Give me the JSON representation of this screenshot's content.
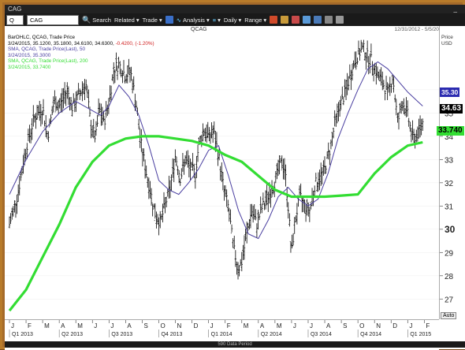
{
  "window": {
    "title": "CAG",
    "min_label": "_"
  },
  "toolbar": {
    "symbol_box": "Q",
    "symbol_input": "CAG",
    "items": [
      "Search",
      "Related",
      "Trade",
      "Analysis",
      "Daily",
      "Range"
    ]
  },
  "chart_header": {
    "symbol": "QCAG",
    "date_range": "12/31/2012 - 5/5/2015 (NYC)"
  },
  "legend": [
    {
      "line": "BarOHLC, QCAG, Trade Price",
      "color": "#000000"
    },
    {
      "line": "3/24/2015, 35.1200, 35.1800, 34.6100, 34.6300, -0.4200, (-1.20%)",
      "color": "#000000",
      "change": "-0.4200, (-1.20%)"
    },
    {
      "line": "SMA, QCAG, Trade Price(Last), 50",
      "color": "#4a3fa0"
    },
    {
      "line": "3/24/2015, 35.3000",
      "color": "#4a3fa0"
    },
    {
      "line": "SMA, QCAG, Trade Price(Last), 200",
      "color": "#33dd33"
    },
    {
      "line": "3/24/2015, 33.7400",
      "color": "#33dd33"
    }
  ],
  "price_axis": {
    "header1": "Price",
    "header2": "USD",
    "ticks": [
      "36",
      "35",
      "34",
      "33",
      "32",
      "31",
      "30",
      "29",
      "28",
      "27"
    ]
  },
  "tags": {
    "last": "34.63",
    "sma50": "35.30",
    "sma200": "33.740"
  },
  "months": [
    "J",
    "F",
    "M",
    "A",
    "M",
    "J",
    "J",
    "A",
    "S",
    "O",
    "N",
    "D",
    "J",
    "F",
    "M",
    "A",
    "M",
    "J",
    "J",
    "A",
    "S",
    "O",
    "N",
    "D",
    "J",
    "F",
    "M",
    "A"
  ],
  "quarters": [
    "Q1 2013",
    "Q2 2013",
    "Q3 2013",
    "Q4 2013",
    "Q1 2014",
    "Q2 2014",
    "Q3 2014",
    "Q4 2014",
    "Q1 2015",
    "Q2 15"
  ],
  "footer": "590 Data Period",
  "auto_label": "Auto",
  "chart_data": {
    "type": "line",
    "title": "QCAG",
    "ylim": [
      26.4,
      38.2
    ],
    "x_range": [
      "2013-01",
      "2015-04"
    ],
    "series": [
      {
        "name": "Trade Price",
        "color": "#000000",
        "points": [
          [
            0,
            30.2
          ],
          [
            0.5,
            31.5
          ],
          [
            1,
            33.5
          ],
          [
            1.5,
            34.8
          ],
          [
            2,
            35.2
          ],
          [
            2.3,
            34.0
          ],
          [
            2.7,
            35.5
          ],
          [
            3,
            35.3
          ],
          [
            3.5,
            36.0
          ],
          [
            3.8,
            35.2
          ],
          [
            4.2,
            35.8
          ],
          [
            4.6,
            36.3
          ],
          [
            4.9,
            34.5
          ],
          [
            5.2,
            33.9
          ],
          [
            5.4,
            35.2
          ],
          [
            5.7,
            34.6
          ],
          [
            6,
            35.5
          ],
          [
            6.3,
            36.9
          ],
          [
            6.6,
            37.1
          ],
          [
            7,
            36.6
          ],
          [
            7.3,
            36.8
          ],
          [
            7.6,
            35.6
          ],
          [
            7.9,
            33.8
          ],
          [
            8.2,
            32.6
          ],
          [
            8.5,
            31.6
          ],
          [
            8.8,
            30.6
          ],
          [
            9.1,
            30.3
          ],
          [
            9.4,
            31.1
          ],
          [
            9.7,
            31.8
          ],
          [
            10.0,
            33.2
          ],
          [
            10.3,
            32.2
          ],
          [
            10.6,
            33.0
          ],
          [
            10.9,
            32.6
          ],
          [
            11.2,
            32.4
          ],
          [
            11.4,
            33.6
          ],
          [
            11.7,
            34.3
          ],
          [
            12.0,
            34.0
          ],
          [
            12.3,
            34.2
          ],
          [
            12.6,
            33.2
          ],
          [
            12.9,
            31.8
          ],
          [
            13.2,
            30.9
          ],
          [
            13.5,
            29.2
          ],
          [
            13.8,
            28.3
          ],
          [
            14.0,
            28.6
          ],
          [
            14.3,
            29.8
          ],
          [
            14.6,
            30.8
          ],
          [
            14.9,
            30.2
          ],
          [
            15.2,
            30.9
          ],
          [
            15.5,
            31.3
          ],
          [
            15.8,
            31.7
          ],
          [
            16.1,
            32.3
          ],
          [
            16.4,
            32.9
          ],
          [
            16.6,
            32.6
          ],
          [
            16.8,
            31.0
          ],
          [
            17.0,
            28.9
          ],
          [
            17.2,
            30.3
          ],
          [
            17.5,
            31.4
          ],
          [
            17.8,
            31.0
          ],
          [
            18.1,
            30.8
          ],
          [
            18.4,
            31.9
          ],
          [
            18.7,
            32.2
          ],
          [
            19.0,
            32.6
          ],
          [
            19.3,
            33.4
          ],
          [
            19.6,
            34.5
          ],
          [
            19.9,
            35.3
          ],
          [
            20.2,
            35.8
          ],
          [
            20.5,
            36.5
          ],
          [
            20.8,
            37.2
          ],
          [
            21.0,
            37.5
          ],
          [
            21.3,
            37.8
          ],
          [
            21.6,
            37.4
          ],
          [
            21.9,
            37.2
          ],
          [
            22.2,
            36.6
          ],
          [
            22.5,
            36.3
          ],
          [
            22.8,
            35.8
          ],
          [
            23.1,
            36.6
          ],
          [
            23.4,
            34.6
          ],
          [
            23.7,
            35.5
          ],
          [
            24.0,
            34.9
          ],
          [
            24.3,
            33.9
          ],
          [
            24.6,
            34.1
          ],
          [
            24.9,
            34.6
          ]
        ]
      },
      {
        "name": "SMA 50",
        "color": "#4a3fa0",
        "points": [
          [
            0,
            31.5
          ],
          [
            1,
            33.0
          ],
          [
            2,
            34.2
          ],
          [
            3,
            35.0
          ],
          [
            4,
            35.5
          ],
          [
            5,
            35.1
          ],
          [
            5.5,
            34.9
          ],
          [
            6,
            35.3
          ],
          [
            6.6,
            36.2
          ],
          [
            7.2,
            35.7
          ],
          [
            7.8,
            34.9
          ],
          [
            8.4,
            33.6
          ],
          [
            9.0,
            32.1
          ],
          [
            9.6,
            31.7
          ],
          [
            10.2,
            31.5
          ],
          [
            10.8,
            32.0
          ],
          [
            11.4,
            32.6
          ],
          [
            12.0,
            33.4
          ],
          [
            12.6,
            33.6
          ],
          [
            13.2,
            32.3
          ],
          [
            13.8,
            30.8
          ],
          [
            14.4,
            29.8
          ],
          [
            15.0,
            29.6
          ],
          [
            15.6,
            30.4
          ],
          [
            16.2,
            31.4
          ],
          [
            16.8,
            31.8
          ],
          [
            17.4,
            31.3
          ],
          [
            18.0,
            31.0
          ],
          [
            18.6,
            31.3
          ],
          [
            19.2,
            32.4
          ],
          [
            19.8,
            33.9
          ],
          [
            20.4,
            35.0
          ],
          [
            21.0,
            36.0
          ],
          [
            21.6,
            36.9
          ],
          [
            22.2,
            37.2
          ],
          [
            22.8,
            36.9
          ],
          [
            23.4,
            36.4
          ],
          [
            24.0,
            35.9
          ],
          [
            24.6,
            35.5
          ],
          [
            24.9,
            35.3
          ]
        ]
      },
      {
        "name": "SMA 200",
        "color": "#33dd33",
        "points": [
          [
            0,
            26.5
          ],
          [
            1,
            27.4
          ],
          [
            2,
            28.8
          ],
          [
            3,
            30.2
          ],
          [
            4,
            31.8
          ],
          [
            5,
            32.9
          ],
          [
            6,
            33.6
          ],
          [
            7,
            33.9
          ],
          [
            8,
            34.0
          ],
          [
            9,
            34.0
          ],
          [
            10,
            33.9
          ],
          [
            11,
            33.8
          ],
          [
            12,
            33.6
          ],
          [
            13,
            33.2
          ],
          [
            14,
            32.9
          ],
          [
            15,
            32.3
          ],
          [
            16,
            31.7
          ],
          [
            17,
            31.4
          ],
          [
            18,
            31.4
          ],
          [
            19,
            31.4
          ],
          [
            20,
            31.45
          ],
          [
            21,
            31.5
          ],
          [
            22,
            32.4
          ],
          [
            23,
            33.1
          ],
          [
            24,
            33.6
          ],
          [
            24.9,
            33.74
          ]
        ]
      }
    ]
  }
}
